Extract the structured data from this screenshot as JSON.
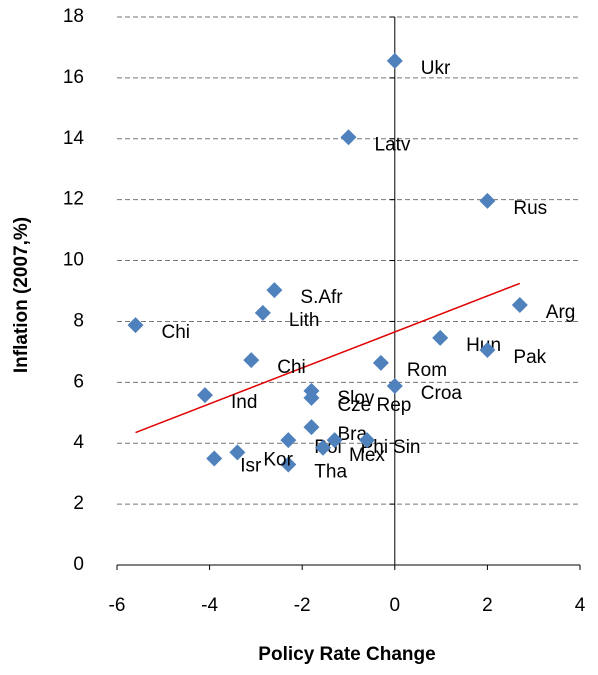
{
  "chart_data": {
    "type": "scatter",
    "xlabel": "Policy Rate  Change",
    "ylabel": "Inflation (2007,%)",
    "x": [
      0,
      -1.0,
      2.0,
      -2.6,
      -5.6,
      -2.85,
      2.7,
      0.98,
      2.0,
      -3.1,
      -0.3,
      -4.1,
      0,
      -1.8,
      -1.8,
      -1.8,
      -2.3,
      -1.3,
      -1.55,
      -0.6,
      -2.3,
      -3.4,
      -3.9
    ],
    "values": [
      16.56,
      14.05,
      11.96,
      9.03,
      7.88,
      8.28,
      8.54,
      7.46,
      7.06,
      6.73,
      6.64,
      5.58,
      5.88,
      5.72,
      5.49,
      4.53,
      4.1,
      4.1,
      3.85,
      4.1,
      3.3,
      3.7,
      3.5
    ],
    "point_labels": [
      "Ukr",
      "Latv",
      "Rus",
      "S.Afr",
      "Chi",
      "Lith",
      "Arg",
      "Hun",
      "Pak",
      "Chi",
      "Rom",
      "Ind",
      "Croa",
      "Slov",
      "Cze Rep",
      "Bra",
      "Pol",
      "Phi",
      "Mex",
      "Sin",
      "Tha",
      "Kor",
      "Isr"
    ],
    "color": "#4f81bd",
    "trendline": {
      "color": "#e00000",
      "x": [
        -5.6,
        2.7
      ],
      "values": [
        4.35,
        9.25
      ]
    },
    "xlim": [
      -6,
      4
    ],
    "xticks": [
      -6,
      -4,
      -2,
      0,
      2,
      4
    ],
    "ylim": [
      0,
      18
    ],
    "yticks": [
      0,
      2,
      4,
      6,
      8,
      10,
      12,
      14,
      16,
      18
    ],
    "grid": true
  }
}
